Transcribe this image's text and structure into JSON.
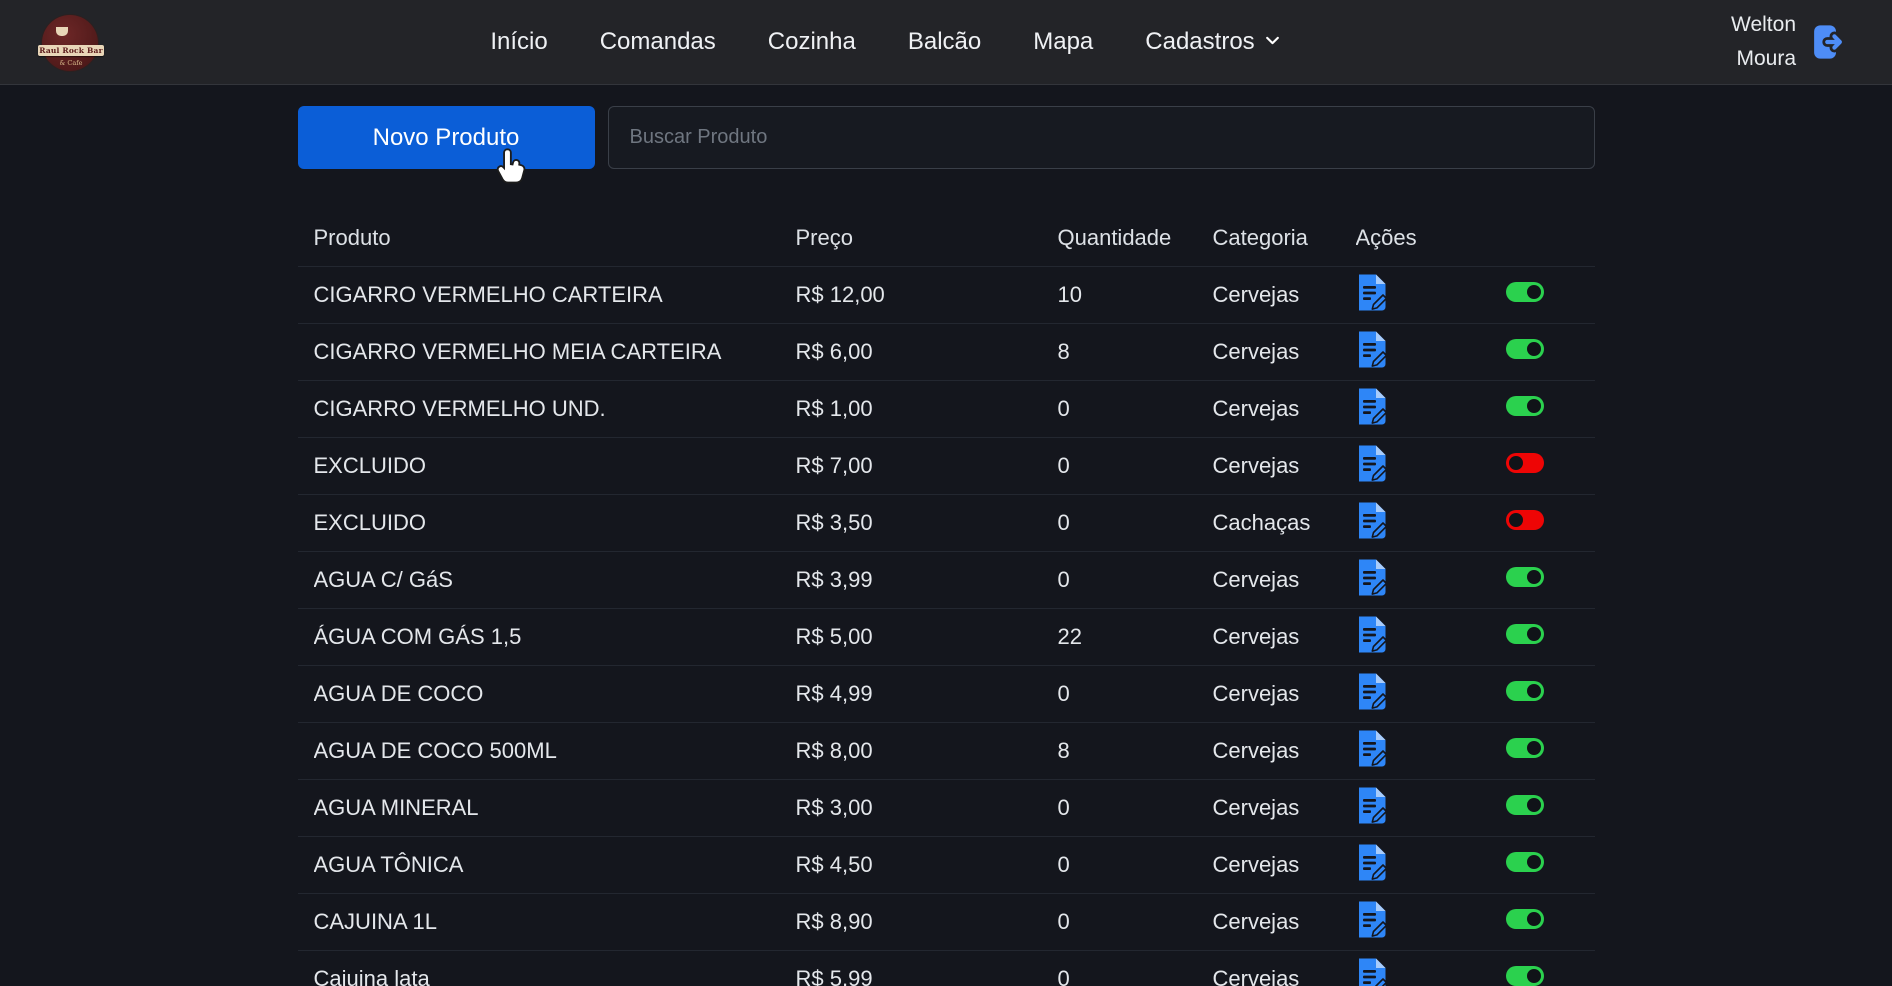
{
  "brand": {
    "logo_title": "Raul Rock Bar",
    "logo_subtitle": "& Cafe"
  },
  "navbar": {
    "items": [
      {
        "key": "inicio",
        "label": "Início"
      },
      {
        "key": "comandas",
        "label": "Comandas"
      },
      {
        "key": "cozinha",
        "label": "Cozinha"
      },
      {
        "key": "balcao",
        "label": "Balcão"
      },
      {
        "key": "mapa",
        "label": "Mapa"
      },
      {
        "key": "cadastros",
        "label": "Cadastros",
        "dropdown": true
      }
    ],
    "user": {
      "line1": "Welton",
      "line2": "Moura"
    }
  },
  "toolbar": {
    "new_product_label": "Novo Produto",
    "search_placeholder": "Buscar Produto",
    "search_value": ""
  },
  "table": {
    "headers": [
      "Produto",
      "Preço",
      "Quantidade",
      "Categoria",
      "Ações"
    ],
    "rows": [
      {
        "produto": "CIGARRO VERMELHO CARTEIRA",
        "preco": "R$ 12,00",
        "quantidade": "10",
        "categoria": "Cervejas",
        "active": true
      },
      {
        "produto": "CIGARRO VERMELHO MEIA CARTEIRA",
        "preco": "R$ 6,00",
        "quantidade": "8",
        "categoria": "Cervejas",
        "active": true
      },
      {
        "produto": "CIGARRO VERMELHO UND.",
        "preco": "R$ 1,00",
        "quantidade": "0",
        "categoria": "Cervejas",
        "active": true
      },
      {
        "produto": "EXCLUIDO",
        "preco": "R$ 7,00",
        "quantidade": "0",
        "categoria": "Cervejas",
        "active": false
      },
      {
        "produto": "EXCLUIDO",
        "preco": "R$ 3,50",
        "quantidade": "0",
        "categoria": "Cachaças",
        "active": false
      },
      {
        "produto": "AGUA C/ GáS",
        "preco": "R$ 3,99",
        "quantidade": "0",
        "categoria": "Cervejas",
        "active": true
      },
      {
        "produto": "ÁGUA COM GÁS 1,5",
        "preco": "R$ 5,00",
        "quantidade": "22",
        "categoria": "Cervejas",
        "active": true
      },
      {
        "produto": "AGUA DE COCO",
        "preco": "R$ 4,99",
        "quantidade": "0",
        "categoria": "Cervejas",
        "active": true
      },
      {
        "produto": "AGUA DE COCO 500ML",
        "preco": "R$ 8,00",
        "quantidade": "8",
        "categoria": "Cervejas",
        "active": true
      },
      {
        "produto": "AGUA MINERAL",
        "preco": "R$ 3,00",
        "quantidade": "0",
        "categoria": "Cervejas",
        "active": true
      },
      {
        "produto": "AGUA TÔNICA",
        "preco": "R$ 4,50",
        "quantidade": "0",
        "categoria": "Cervejas",
        "active": true
      },
      {
        "produto": "CAJUINA 1L",
        "preco": "R$ 8,90",
        "quantidade": "0",
        "categoria": "Cervejas",
        "active": true
      },
      {
        "produto": "Cajuina lata",
        "preco": "R$ 5,99",
        "quantidade": "0",
        "categoria": "Cervejas",
        "active": true
      }
    ]
  },
  "icons": {
    "logout": "logout-icon",
    "chevron": "chevron-down-icon",
    "edit": "edit-document-icon",
    "cursor": "hand-pointer-cursor"
  },
  "colors": {
    "accent_blue": "#0b5ed7",
    "icon_blue": "#2e86f7",
    "toggle_on": "#2bd14e",
    "toggle_off": "#ee0505",
    "navbar_bg": "#232428",
    "page_bg": "#14161d"
  }
}
